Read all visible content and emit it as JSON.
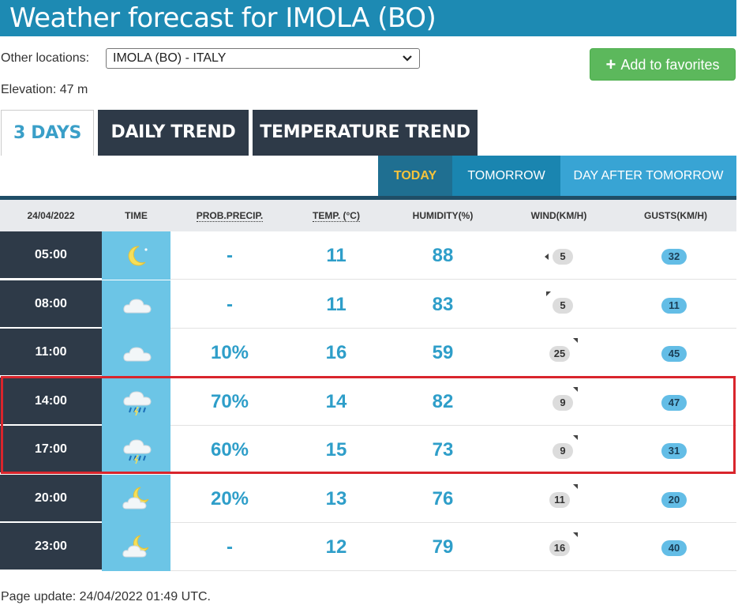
{
  "title": "Weather forecast for IMOLA (BO)",
  "location": {
    "label": "Other locations:",
    "selected": "IMOLA (BO) - ITALY",
    "add_favorites": "Add to favorites",
    "elevation": "Elevation: 47 m"
  },
  "tabs": [
    "3 DAYS",
    "DAILY TREND",
    "TEMPERATURE TREND"
  ],
  "day_tabs": [
    "TODAY",
    "TOMORROW",
    "DAY AFTER TOMORROW"
  ],
  "table": {
    "headers": [
      "24/04/2022",
      "TIME",
      "PROB.PRECIP.",
      "TEMP. (°C)",
      "HUMIDITY(%)",
      "WIND(KM/H)",
      "GUSTS(KM/H)"
    ],
    "rows": [
      {
        "time": "05:00",
        "icon": "moon-icon",
        "precip": "-",
        "temp": "11",
        "humidity": "88",
        "wind": "5",
        "wind_dir": "left-icon",
        "gusts": "32"
      },
      {
        "time": "08:00",
        "icon": "cloud-icon",
        "precip": "-",
        "temp": "11",
        "humidity": "83",
        "wind": "5",
        "wind_dir": "top-left-icon",
        "gusts": "11"
      },
      {
        "time": "11:00",
        "icon": "cloud-icon",
        "precip": "10%",
        "temp": "16",
        "humidity": "59",
        "wind": "25",
        "wind_dir": "top-right-icon",
        "gusts": "45"
      },
      {
        "time": "14:00",
        "icon": "rain-cloud-icon",
        "precip": "70%",
        "temp": "14",
        "humidity": "82",
        "wind": "9",
        "wind_dir": "top-right-icon",
        "gusts": "47"
      },
      {
        "time": "17:00",
        "icon": "rain-cloud-icon",
        "precip": "60%",
        "temp": "15",
        "humidity": "73",
        "wind": "9",
        "wind_dir": "top-right-icon",
        "gusts": "31"
      },
      {
        "time": "20:00",
        "icon": "moon-cloud-icon",
        "precip": "20%",
        "temp": "13",
        "humidity": "76",
        "wind": "11",
        "wind_dir": "top-right-icon",
        "gusts": "20"
      },
      {
        "time": "23:00",
        "icon": "moon-cloud-icon",
        "precip": "-",
        "temp": "12",
        "humidity": "79",
        "wind": "16",
        "wind_dir": "top-right-icon",
        "gusts": "40"
      }
    ]
  },
  "footer": "Page update: 24/04/2022 01:49 UTC.",
  "colors": {
    "title_bar": "#1d8ab3",
    "dark_cell": "#2e3a48",
    "icon_cell": "#6cc5e6",
    "value_text": "#2e9ec9",
    "highlight_border": "#d9252c",
    "favorite_button": "#5cb85c"
  }
}
